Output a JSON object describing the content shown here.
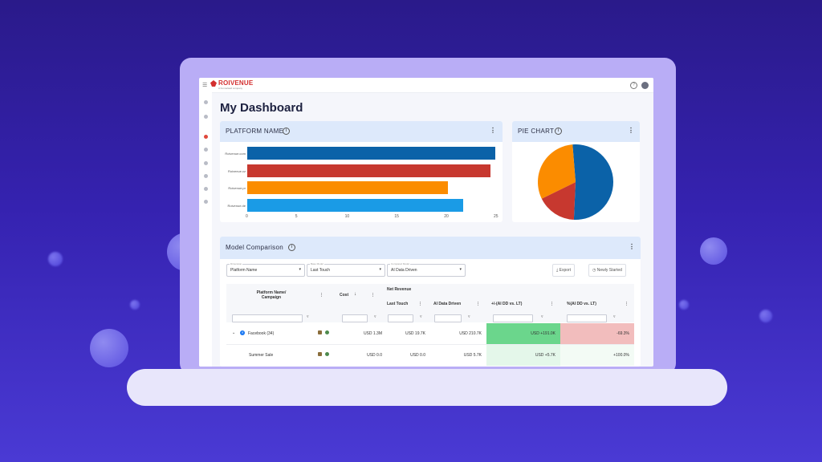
{
  "colors": {
    "bar_blue": "#0b62a8",
    "bar_red": "#c7382f",
    "bar_orange": "#fb8c00",
    "bar_lightblue": "#1a9be6",
    "positive_green": "#6bd68c",
    "negative_red": "#f2bdbd",
    "header_blue": "#dde9fb"
  },
  "app": {
    "brand": "ROIVENUE",
    "brand_sub": "A Funnelwell company",
    "title": "My Dashboard"
  },
  "platform_card": {
    "title": "PLATFORM NAME"
  },
  "pie_card": {
    "title": "PIE CHART"
  },
  "chart_data": [
    {
      "type": "bar",
      "orientation": "horizontal",
      "categories": [
        "Roivenue.com",
        "Roivenue.cz",
        "Roivenue.pr",
        "Roivenue.de"
      ],
      "values": [
        25,
        24.5,
        20.2,
        21.8
      ],
      "colors": [
        "#0b62a8",
        "#c7382f",
        "#fb8c00",
        "#1a9be6"
      ],
      "xlim": [
        0,
        25
      ],
      "xticks": [
        "0",
        "5",
        "10",
        "15",
        "20",
        "25"
      ],
      "title": "",
      "xlabel": "",
      "ylabel": ""
    },
    {
      "type": "pie",
      "values": [
        52,
        17,
        31
      ],
      "colors": [
        "#0b62a8",
        "#c7382f",
        "#fb8c00"
      ],
      "title": ""
    }
  ],
  "model_card": {
    "title": "Model Comparison",
    "selects": [
      {
        "legend": "Dimension",
        "value": "Platform Name"
      },
      {
        "legend": "Base Model",
        "value": "Last Touch"
      },
      {
        "legend": "Compared Model",
        "value": "AI Data Driven"
      }
    ],
    "export_label": "Export",
    "newly_started_label": "Newly Started",
    "headers": {
      "platform": "Platform Name/ Campaign",
      "cost": "Cost",
      "net_revenue": "Net Revenue",
      "last_touch": "Last Touch",
      "ai_data_driven": "AI Data Driven",
      "diff": "+/-(AI DD vs. LT)",
      "pct": "%(AI DD vs. LT)"
    },
    "rows": [
      {
        "name": "Facebook (34)",
        "cost": "USD 1.3M",
        "last_touch": "USD 19.7K",
        "ai_dd": "USD 210.7K",
        "diff": "USD +191.0K",
        "pct": "-69.3%"
      },
      {
        "name": "Summer Sale",
        "cost": "USD 0.0",
        "last_touch": "USD 0.0",
        "ai_dd": "USD 5.7K",
        "diff": "USD +5.7K",
        "pct": "+100.0%"
      }
    ]
  }
}
